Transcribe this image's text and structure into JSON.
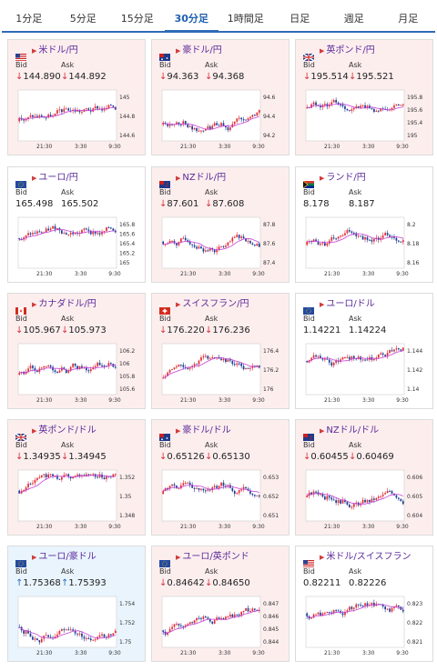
{
  "tabs": [
    {
      "label": "1分足",
      "active": false
    },
    {
      "label": "5分足",
      "active": false
    },
    {
      "label": "15分足",
      "active": false
    },
    {
      "label": "30分足",
      "active": true
    },
    {
      "label": "1時間足",
      "active": false
    },
    {
      "label": "日足",
      "active": false
    },
    {
      "label": "週足",
      "active": false
    },
    {
      "label": "月足",
      "active": false
    }
  ],
  "labels": {
    "bid": "Bid",
    "ask": "Ask"
  },
  "cards": [
    {
      "pair": "米ドル/円",
      "flag": "us",
      "trend": "down",
      "bid": "144.890",
      "ask": "144.892",
      "y_ticks": [
        "145",
        "144.8",
        "144.6"
      ],
      "x_ticks": [
        "21:30",
        "3:30",
        "9:30"
      ]
    },
    {
      "pair": "豪ドル/円",
      "flag": "au",
      "trend": "down",
      "bid": "94.363",
      "ask": "94.368",
      "y_ticks": [
        "94.6",
        "94.4",
        "94.2"
      ],
      "x_ticks": [
        "21:30",
        "3:30",
        "9:30"
      ]
    },
    {
      "pair": "英ポンド/円",
      "flag": "gb",
      "trend": "down",
      "bid": "195.514",
      "ask": "195.521",
      "y_ticks": [
        "195.8",
        "195.6",
        "195.4",
        "195"
      ],
      "x_ticks": [
        "21:30",
        "3:30",
        "9:30"
      ]
    },
    {
      "pair": "ユーロ/円",
      "flag": "eu",
      "trend": "none",
      "bid": "165.498",
      "ask": "165.502",
      "y_ticks": [
        "165.8",
        "165.6",
        "165.4",
        "165.2",
        "165"
      ],
      "x_ticks": [
        "21:30",
        "3:30",
        "9:30"
      ]
    },
    {
      "pair": "NZドル/円",
      "flag": "nz",
      "trend": "down",
      "bid": "87.601",
      "ask": "87.608",
      "y_ticks": [
        "87.8",
        "87.6",
        "87.4"
      ],
      "x_ticks": [
        "21:30",
        "3:30",
        "9:30"
      ]
    },
    {
      "pair": "ランド/円",
      "flag": "za",
      "trend": "none",
      "bid": "8.178",
      "ask": "8.187",
      "y_ticks": [
        "8.2",
        "8.18",
        "8.16"
      ],
      "x_ticks": [
        "21:30",
        "3:30",
        "9:30"
      ]
    },
    {
      "pair": "カナダドル/円",
      "flag": "ca",
      "trend": "down",
      "bid": "105.967",
      "ask": "105.973",
      "y_ticks": [
        "106.2",
        "106",
        "105.8",
        "105.6"
      ],
      "x_ticks": [
        "21:30",
        "3:30",
        "9:30"
      ]
    },
    {
      "pair": "スイスフラン/円",
      "flag": "ch",
      "trend": "down",
      "bid": "176.220",
      "ask": "176.236",
      "y_ticks": [
        "176.4",
        "176.2",
        "176"
      ],
      "x_ticks": [
        "21:30",
        "3:30",
        "9:30"
      ]
    },
    {
      "pair": "ユーロ/ドル",
      "flag": "eu",
      "trend": "none",
      "bid": "1.14221",
      "ask": "1.14224",
      "y_ticks": [
        "1.144",
        "1.142",
        "1.14"
      ],
      "x_ticks": [
        "21:30",
        "3:30",
        "9:30"
      ]
    },
    {
      "pair": "英ポンド/ドル",
      "flag": "gb",
      "trend": "down",
      "bid": "1.34935",
      "ask": "1.34945",
      "y_ticks": [
        "1.352",
        "1.35",
        "1.348"
      ],
      "x_ticks": [
        "21:30",
        "3:30",
        "9:30"
      ]
    },
    {
      "pair": "豪ドル/ドル",
      "flag": "au",
      "trend": "down",
      "bid": "0.65126",
      "ask": "0.65130",
      "y_ticks": [
        "0.653",
        "0.652",
        "0.651"
      ],
      "x_ticks": [
        "21:30",
        "3:30",
        "9:30"
      ]
    },
    {
      "pair": "NZドル/ドル",
      "flag": "nz",
      "trend": "down",
      "bid": "0.60455",
      "ask": "0.60469",
      "y_ticks": [
        "0.606",
        "0.605",
        "0.604"
      ],
      "x_ticks": [
        "21:30",
        "3:30",
        "9:30"
      ]
    },
    {
      "pair": "ユーロ/豪ドル",
      "flag": "eu",
      "trend": "up",
      "bid": "1.75368",
      "ask": "1.75393",
      "y_ticks": [
        "1.754",
        "1.752",
        "1.75"
      ],
      "x_ticks": [
        "21:30",
        "3:30",
        "9:30"
      ]
    },
    {
      "pair": "ユーロ/英ポンド",
      "flag": "eu",
      "trend": "down",
      "bid": "0.84642",
      "ask": "0.84650",
      "y_ticks": [
        "0.847",
        "0.846",
        "0.845",
        "0.844"
      ],
      "x_ticks": [
        "21:30",
        "3:30",
        "9:30"
      ]
    },
    {
      "pair": "米ドル/スイスフラン",
      "flag": "us",
      "trend": "none",
      "bid": "0.82211",
      "ask": "0.82226",
      "y_ticks": [
        "0.823",
        "0.822",
        "0.821"
      ],
      "x_ticks": [
        "21:30",
        "3:30",
        "9:30"
      ]
    }
  ],
  "colors": {
    "accent": "#2f6bb7",
    "pair_text": "#5a2a9a",
    "candle_up": "#e0303a",
    "candle_down": "#1e3f95",
    "ma_line": "#c640d8",
    "down_bg": "#fdeeee",
    "up_bg": "#e9f4fd"
  }
}
